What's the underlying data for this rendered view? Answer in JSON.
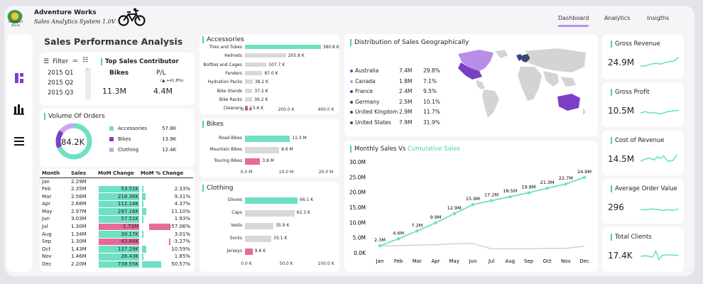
{
  "app": {
    "title": "Adventure Works",
    "subtitle": "Sales Analytics System 1.0V",
    "logo_text": "Adventure Works",
    "logo_icon": "bicycle-icon"
  },
  "nav": [
    "Dashboard",
    "Analytics",
    "Insigths"
  ],
  "colors": {
    "accent": "#7c3fd6",
    "teal": "#6ee0c4",
    "pink": "#e66a9a",
    "grey": "#d6d6d6",
    "purple": "#8a5cc9"
  },
  "sidebar": {
    "icons": [
      "dashboard-icon",
      "bar-chart-icon",
      "menu-icon"
    ]
  },
  "header": {
    "title": "Sales Performance Analysis"
  },
  "filter": {
    "label": "Filter",
    "items": [
      "2015 Q1",
      "2015 Q2",
      "2015 Q3"
    ]
  },
  "top_sales": {
    "title": "Top Sales Contributor",
    "product_label": "Bikes",
    "pl_label": "P/L",
    "change": "(▲ +41.8%)",
    "value": "11.3M",
    "pl_value": "4.4M"
  },
  "orders": {
    "title": "Volume Of Orders",
    "total": "84.2K",
    "items": [
      {
        "label": "Accessories",
        "value": "57.8K",
        "color": "#6ee0c4"
      },
      {
        "label": "Bikes",
        "value": "13.9K",
        "color": "#7a3fc4"
      },
      {
        "label": "Clothing",
        "value": "12.4K",
        "color": "#c9a8f0"
      }
    ]
  },
  "month_table": {
    "headers": [
      "Month",
      "Sales",
      "MoM Change",
      "MoM % Change"
    ],
    "rows": [
      [
        "Jan",
        "2.29M",
        "",
        ""
      ],
      [
        "Feb",
        "2.35M",
        "53.51K",
        "2.33%"
      ],
      [
        "Mar",
        "2.56M",
        "218.36K",
        "9.31%"
      ],
      [
        "Apr",
        "2.68M",
        "112.14K",
        "4.37%"
      ],
      [
        "May",
        "2.97M",
        "297.16K",
        "11.10%"
      ],
      [
        "Jun",
        "3.03M",
        "57.51K",
        "1.93%"
      ],
      [
        "Jul",
        "1.30M",
        "-1.73M",
        "-57.06%"
      ],
      [
        "Aug",
        "1.34M",
        "39.17K",
        "3.01%"
      ],
      [
        "Sep",
        "1.30M",
        "-43.84K",
        "-3.27%"
      ],
      [
        "Oct",
        "1.43M",
        "137.29K",
        "10.59%"
      ],
      [
        "Nov",
        "1.46M",
        "26.43K",
        "1.85%"
      ],
      [
        "Dec",
        "2.20M",
        "738.55K",
        "50.57%"
      ]
    ],
    "mom_values": [
      0,
      53.51,
      218.36,
      112.14,
      297.16,
      57.51,
      -1730,
      39.17,
      -43.84,
      137.29,
      26.43,
      738.55
    ],
    "mom_pct": [
      0,
      2.33,
      9.31,
      4.37,
      11.1,
      1.93,
      -57.06,
      3.01,
      -3.27,
      10.59,
      1.85,
      50.57
    ]
  },
  "accessories": {
    "title": "Accessories",
    "items": [
      {
        "label": "Tires and Tubes",
        "value": 380.8,
        "text": "380.8 K"
      },
      {
        "label": "Helmets",
        "value": 205.8,
        "text": "205.8 K"
      },
      {
        "label": "Bottles and Cages",
        "value": 107.7,
        "text": "107.7 K"
      },
      {
        "label": "Fenders",
        "value": 87.0,
        "text": "87.0 K"
      },
      {
        "label": "Hydration Packs",
        "value": 38.2,
        "text": "38.2 K"
      },
      {
        "label": "Bike Stands",
        "value": 37.2,
        "text": "37.2 K"
      },
      {
        "label": "Bike Racks",
        "value": 36.2,
        "text": "36.2 K"
      },
      {
        "label": "Cleaners",
        "value": 13.6,
        "text": "13.6 K"
      }
    ],
    "max": 400,
    "ticks": [
      "0.0 K",
      "200.0 K",
      "400.0 K"
    ]
  },
  "bikes": {
    "title": "Bikes",
    "items": [
      {
        "label": "Road Bikes",
        "value": 11.3,
        "text": "11.3 M"
      },
      {
        "label": "Mountain Bikes",
        "value": 8.6,
        "text": "8.6 M"
      },
      {
        "label": "Touring Bikes",
        "value": 3.8,
        "text": "3.8 M"
      }
    ],
    "max": 20,
    "ticks": [
      "0.0 M",
      "10.0 M",
      "20.0 M"
    ]
  },
  "clothing": {
    "title": "Clothing",
    "items": [
      {
        "label": "Gloves",
        "value": 66.1,
        "text": "66.1 K"
      },
      {
        "label": "Caps",
        "value": 62.3,
        "text": "62.3 K"
      },
      {
        "label": "Vests",
        "value": 35.9,
        "text": "35.9 K"
      },
      {
        "label": "Socks",
        "value": 33.1,
        "text": "33.1 K"
      },
      {
        "label": "Jerseys",
        "value": 9.6,
        "text": "9.6 K"
      }
    ],
    "max": 100,
    "ticks": [
      "0.0 K",
      "50.0 K",
      "100.0 K"
    ]
  },
  "geo": {
    "title": "Distribution of Sales Geographically",
    "rows": [
      {
        "country": "Australia",
        "sales": "7.4M",
        "pct": "29.8%",
        "color": "#7a3fc4"
      },
      {
        "country": "Canada",
        "sales": "1.8M",
        "pct": "7.1%",
        "color": "#b98ee6"
      },
      {
        "country": "France",
        "sales": "2.4M",
        "pct": "9.5%",
        "color": "#3d3f8f"
      },
      {
        "country": "Germany",
        "sales": "2.5M",
        "pct": "10.1%",
        "color": "#3d4a6a"
      },
      {
        "country": "United Kingdom",
        "sales": "2.9M",
        "pct": "11.7%",
        "color": "#3d4a6a"
      },
      {
        "country": "United States",
        "sales": "7.9M",
        "pct": "31.9%",
        "color": "#3d4a6a"
      }
    ]
  },
  "kpis": [
    {
      "title": "Gross Revenue",
      "value": "24.9M"
    },
    {
      "title": "Gross Profit",
      "value": "10.5M"
    },
    {
      "title": "Cost of Revenue",
      "value": "14.5M"
    },
    {
      "title": "Average Order Value",
      "value": "296"
    },
    {
      "title": "Total Clients",
      "value": "17.4K"
    }
  ],
  "chart_data": {
    "type": "line",
    "title": "Monthly Sales Vs",
    "title_highlight": "Cumulative Sales",
    "categories": [
      "Jan",
      "Feb",
      "Mar",
      "Apr",
      "May",
      "Jun",
      "Jul",
      "Aug",
      "Sep",
      "Oct",
      "Nov",
      "Dec"
    ],
    "series": [
      {
        "name": "Cumulative Sales",
        "values": [
          2.3,
          4.6,
          7.2,
          9.9,
          12.9,
          15.9,
          17.2,
          18.5,
          19.8,
          21.3,
          22.7,
          24.9
        ],
        "labels": [
          "2.3M",
          "4.6M",
          "7.2M",
          "9.9M",
          "12.9M",
          "15.9M",
          "17.2M",
          "18.5M",
          "19.8M",
          "21.3M",
          "22.7M",
          "24.9M"
        ],
        "color": "#6ee0c4"
      },
      {
        "values": [
          2.29,
          2.35,
          2.56,
          2.68,
          2.97,
          3.03,
          1.3,
          1.34,
          1.3,
          1.43,
          1.46,
          2.2
        ],
        "color": "#d0d0d0"
      }
    ],
    "ylim": [
      0,
      30
    ],
    "yticks": [
      "0.0K",
      "5.0M",
      "10.0M",
      "15.0M",
      "20.0M",
      "25.0M",
      "30.0M"
    ]
  }
}
